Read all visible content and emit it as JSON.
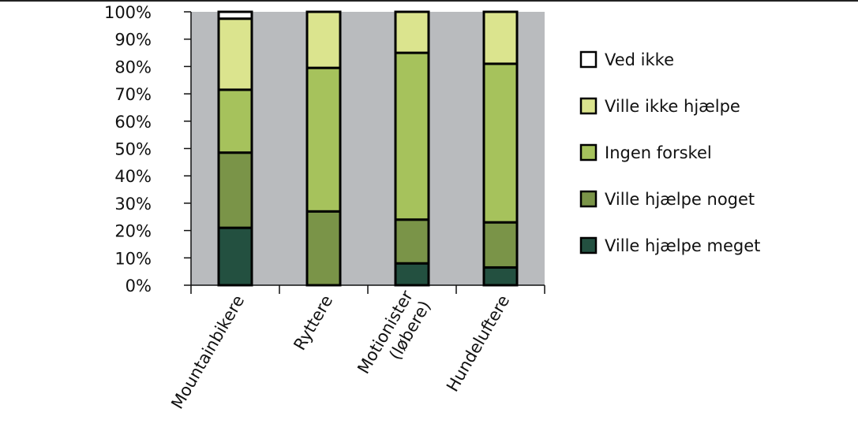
{
  "chart_data": {
    "type": "bar",
    "stacked": true,
    "percent_axis": true,
    "categories": [
      [
        "Mountainbikere"
      ],
      [
        "Ryttere"
      ],
      [
        "Motionister",
        "(løbere)"
      ],
      [
        "Hundeluftere"
      ]
    ],
    "series": [
      {
        "name": "Ville hjælpe meget",
        "color": "#235040",
        "values": [
          21,
          0,
          8,
          6.5
        ]
      },
      {
        "name": "Ville hjælpe noget",
        "color": "#7a9448",
        "values": [
          27.5,
          27,
          16,
          16.5
        ]
      },
      {
        "name": "Ingen forskel",
        "color": "#a6c25c",
        "values": [
          23,
          52.5,
          61,
          58
        ]
      },
      {
        "name": "Ville ikke hjælpe",
        "color": "#dbe48e",
        "values": [
          26,
          20.5,
          15,
          19
        ]
      },
      {
        "name": "Ved ikke",
        "color": "#ffffff",
        "values": [
          2.5,
          0,
          0,
          0
        ]
      }
    ],
    "y_ticks": [
      "0%",
      "10%",
      "20%",
      "30%",
      "40%",
      "50%",
      "60%",
      "70%",
      "80%",
      "90%",
      "100%"
    ],
    "ylim": [
      0,
      100
    ],
    "plot_background": "#b9bbbe",
    "grid": false,
    "legend_position": "right",
    "legend_order": [
      "Ved ikke",
      "Ville ikke hjælpe",
      "Ingen forskel",
      "Ville hjælpe noget",
      "Ville hjælpe meget"
    ]
  }
}
